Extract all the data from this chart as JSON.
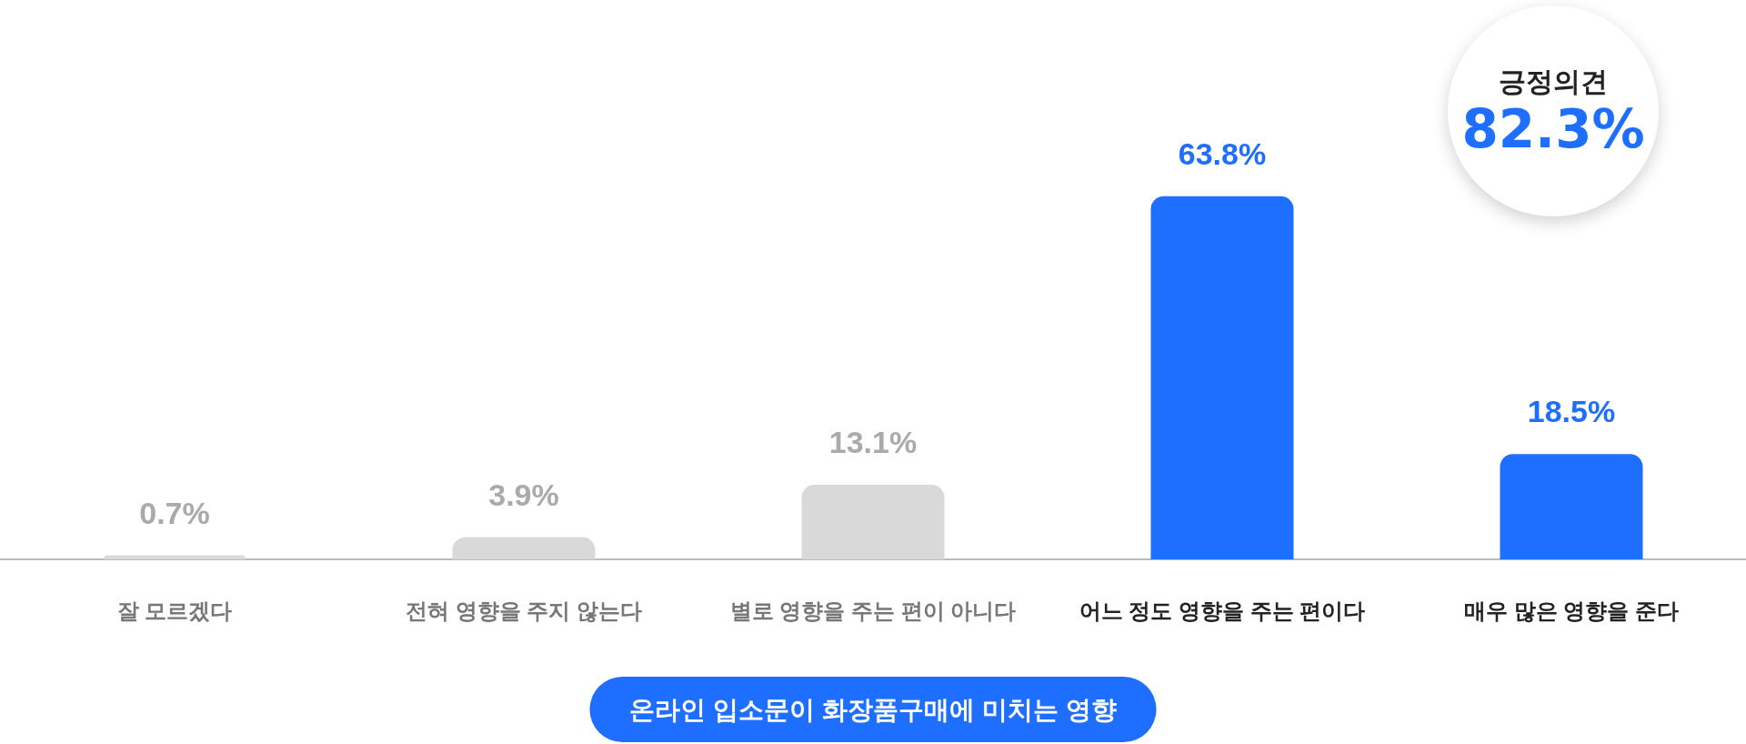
{
  "chart_data": {
    "type": "bar",
    "title": "온라인 입소문이 화장품구매에 미치는 영향",
    "categories": [
      "잘 모르겠다",
      "전혀 영향을 주지 않는다",
      "별로 영향을 주는 편이 아니다",
      "어느 정도 영향을 주는 편이다",
      "매우 많은 영향을 준다"
    ],
    "values": [
      0.7,
      3.9,
      13.1,
      63.8,
      18.5
    ],
    "value_labels": [
      "0.7%",
      "3.9%",
      "13.1%",
      "63.8%",
      "18.5%"
    ],
    "colors": [
      "#d9d9d9",
      "#d9d9d9",
      "#d9d9d9",
      "#1e6fff",
      "#1e6fff"
    ],
    "annotations": [
      "긍정의견",
      "82.3%"
    ]
  }
}
